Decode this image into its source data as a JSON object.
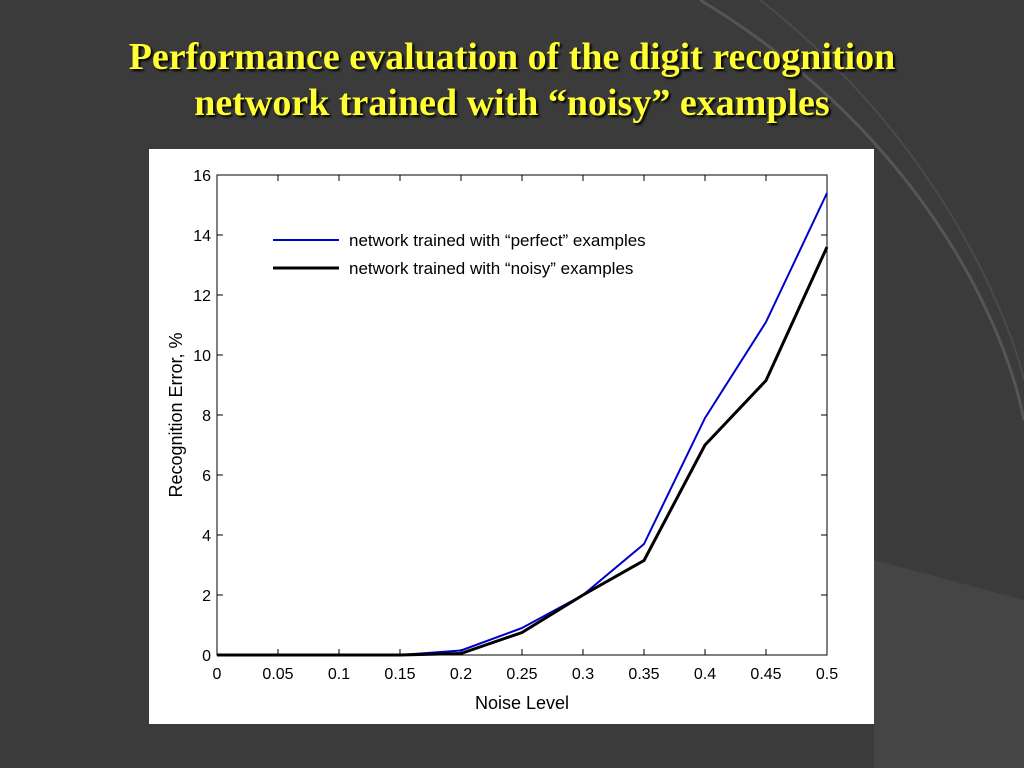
{
  "slide": {
    "title_line1": "Performance evaluation of the digit recognition",
    "title_line2": "network trained with “noisy” examples",
    "title_color": "#ffff33",
    "background_color": "#3b3b3b"
  },
  "chart_data": {
    "type": "line",
    "title": "",
    "xlabel": "Noise Level",
    "ylabel": "Recognition Error, %",
    "xlim": [
      0,
      0.5
    ],
    "ylim": [
      0,
      16
    ],
    "x_ticks": [
      "0",
      "0.05",
      "0.1",
      "0.15",
      "0.2",
      "0.25",
      "0.3",
      "0.35",
      "0.4",
      "0.45",
      "0.5"
    ],
    "y_ticks": [
      "0",
      "2",
      "4",
      "6",
      "8",
      "10",
      "12",
      "14",
      "16"
    ],
    "grid": false,
    "legend_position": "top-left",
    "x": [
      0,
      0.05,
      0.1,
      0.15,
      0.2,
      0.25,
      0.3,
      0.35,
      0.4,
      0.45,
      0.5
    ],
    "series": [
      {
        "name": "network trained with “perfect” examples",
        "color": "#0000cc",
        "values": [
          0,
          0,
          0,
          0,
          0.15,
          0.9,
          2.0,
          3.7,
          7.9,
          11.1,
          15.4
        ]
      },
      {
        "name": "network trained with “noisy” examples",
        "color": "#000000",
        "values": [
          0,
          0,
          0,
          0,
          0.05,
          0.75,
          2.0,
          3.15,
          7.0,
          9.15,
          13.6
        ]
      }
    ]
  }
}
